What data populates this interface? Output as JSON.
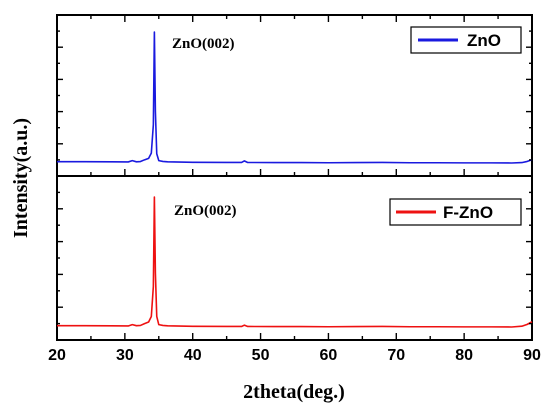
{
  "chart_data": [
    {
      "type": "line",
      "panel": "top",
      "xlabel": "2theta(deg.)",
      "ylabel": "Intensity(a.u.)",
      "xlim": [
        20,
        90
      ],
      "xticks": [
        20,
        30,
        40,
        50,
        60,
        70,
        80,
        90
      ],
      "y_tick_labels": false,
      "legend": {
        "position": "top-right",
        "entries": [
          {
            "name": "ZnO",
            "color": "#1a1adf"
          }
        ]
      },
      "annotations": [
        {
          "text": "ZnO(002)",
          "x": 34.4
        }
      ],
      "series": [
        {
          "name": "ZnO",
          "color": "#1a1adf",
          "x": [
            20,
            24,
            28,
            30.5,
            31.1,
            31.7,
            32.3,
            32.9,
            33.5,
            33.9,
            34.2,
            34.35,
            34.5,
            34.7,
            35.0,
            35.6,
            36.3,
            40,
            45,
            47.2,
            47.6,
            48.1,
            52,
            56,
            60,
            64,
            68,
            72,
            76,
            80,
            84,
            87,
            88.5,
            89.3,
            90
          ],
          "y": [
            2.0,
            2.0,
            1.9,
            1.8,
            2.8,
            1.9,
            2.1,
            3.4,
            4.5,
            8.5,
            30,
            100,
            40,
            8,
            2.8,
            2.2,
            1.9,
            1.5,
            1.4,
            1.4,
            2.6,
            1.4,
            1.3,
            1.3,
            1.2,
            1.3,
            1.4,
            1.2,
            1.2,
            1.1,
            1.1,
            1.0,
            1.3,
            2.2,
            3.5
          ]
        }
      ]
    },
    {
      "type": "line",
      "panel": "bottom",
      "xlabel": "2theta(deg.)",
      "ylabel": "Intensity(a.u.)",
      "xlim": [
        20,
        90
      ],
      "xticks": [
        20,
        30,
        40,
        50,
        60,
        70,
        80,
        90
      ],
      "y_tick_labels": false,
      "legend": {
        "position": "top-right",
        "entries": [
          {
            "name": "F-ZnO",
            "color": "#ee1111"
          }
        ]
      },
      "annotations": [
        {
          "text": "ZnO(002)",
          "x": 34.4
        }
      ],
      "series": [
        {
          "name": "F-ZnO",
          "color": "#ee1111",
          "x": [
            20,
            24,
            28,
            30.5,
            31.1,
            31.7,
            32.3,
            32.9,
            33.5,
            33.9,
            34.2,
            34.35,
            34.5,
            34.7,
            35.0,
            35.6,
            36.3,
            40,
            45,
            47.2,
            47.6,
            48.1,
            52,
            56,
            60,
            64,
            68,
            72,
            76,
            80,
            84,
            87,
            88.5,
            89.3,
            90
          ],
          "y": [
            2.0,
            2.0,
            1.9,
            1.8,
            2.8,
            2.0,
            2.2,
            3.6,
            4.8,
            9.0,
            32,
            100,
            42,
            9,
            2.8,
            2.2,
            1.9,
            1.5,
            1.4,
            1.4,
            2.4,
            1.4,
            1.3,
            1.3,
            1.2,
            1.3,
            1.4,
            1.2,
            1.2,
            1.1,
            1.1,
            1.0,
            1.6,
            3.0,
            5.0
          ]
        }
      ]
    }
  ]
}
